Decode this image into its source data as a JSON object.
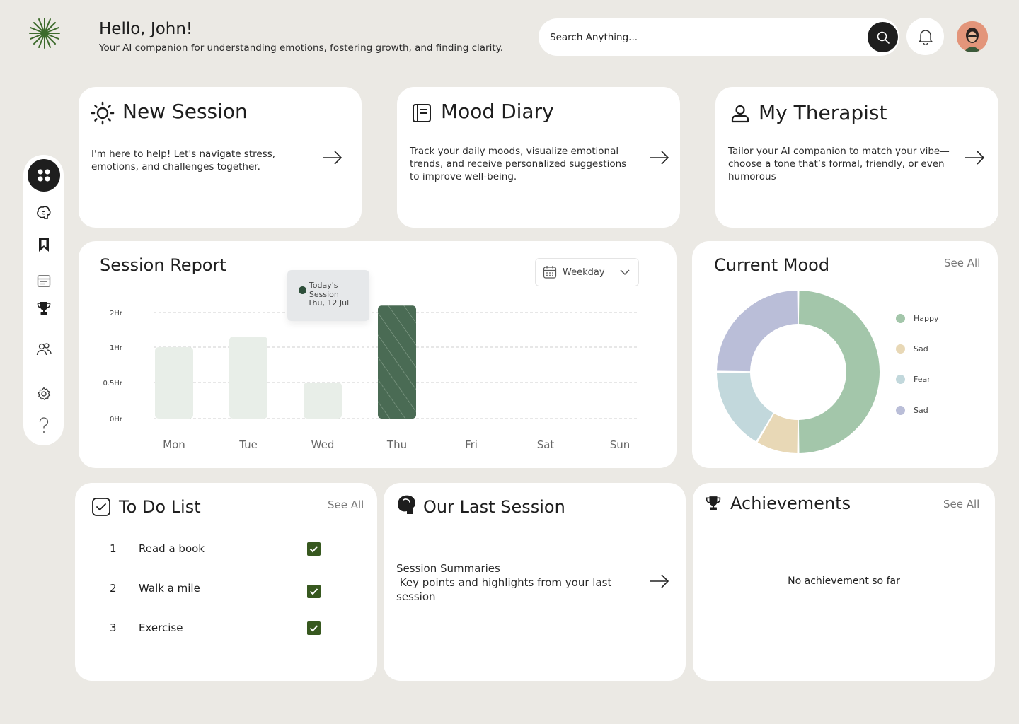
{
  "header": {
    "greeting": "Hello, John!",
    "tagline": "Your AI companion for understanding emotions, fostering growth, and finding clarity.",
    "search_placeholder": "Search Anything..."
  },
  "sidebar": {
    "items": [
      {
        "icon": "grid-icon",
        "active": true
      },
      {
        "icon": "brain-icon"
      },
      {
        "icon": "bookmark-icon"
      },
      {
        "icon": "calendar-icon"
      },
      {
        "icon": "trophy-icon"
      },
      {
        "icon": "users-icon"
      },
      {
        "icon": "settings-icon"
      },
      {
        "icon": "help-icon"
      }
    ]
  },
  "cards": {
    "new_session": {
      "title": "New Session",
      "text": "I'm here to help! Let's navigate stress, emotions, and challenges together."
    },
    "mood_diary": {
      "title": "Mood Diary",
      "text": "Track your daily moods, visualize emotional trends, and receive personalized suggestions to improve well-being."
    },
    "my_therapist": {
      "title": "My Therapist",
      "text": "Tailor your AI companion to match your vibe—choose a tone that’s formal, friendly, or even humorous"
    }
  },
  "session_report": {
    "title": "Session Report",
    "dropdown_value": "Weekday",
    "tooltip_label": "Today's Session",
    "tooltip_date": "Thu, 12 Jul"
  },
  "chart_data": {
    "type": "bar",
    "categories": [
      "Mon",
      "Tue",
      "Wed",
      "Thu",
      "Fri",
      "Sat",
      "Sun"
    ],
    "values": [
      1.0,
      1.3,
      0.5,
      2.2,
      null,
      null,
      null
    ],
    "y_ticks": [
      "0Hr",
      "0.5Hr",
      "1Hr",
      "2Hr"
    ],
    "highlight": "Thu",
    "colors": {
      "bar": "#e8eee8",
      "highlight": "#4a6b54"
    }
  },
  "current_mood": {
    "title": "Current Mood",
    "see_all": "See All",
    "legend": [
      {
        "label": "Happy",
        "color": "#a3c6aa"
      },
      {
        "label": "Sad",
        "color": "#e8d8b6"
      },
      {
        "label": "Fear",
        "color": "#c2d8dc"
      },
      {
        "label": "Sad",
        "color": "#babed8"
      }
    ],
    "chart_data": {
      "type": "pie",
      "labels": [
        "Happy",
        "Sad",
        "Fear",
        "Sad"
      ],
      "values": [
        50,
        8.5,
        16.5,
        25
      ]
    }
  },
  "todo": {
    "title": "To Do List",
    "see_all": "See All",
    "items": [
      {
        "num": "1",
        "label": "Read a book"
      },
      {
        "num": "2",
        "label": "Walk a mile"
      },
      {
        "num": "3",
        "label": "Exercise"
      }
    ]
  },
  "last_session": {
    "title": "Our Last Session",
    "line1": "Session Summaries",
    "line2": " Key points and highlights from your last session"
  },
  "achievements": {
    "title": "Achievements",
    "see_all": "See All",
    "empty": "No achievement so far"
  }
}
